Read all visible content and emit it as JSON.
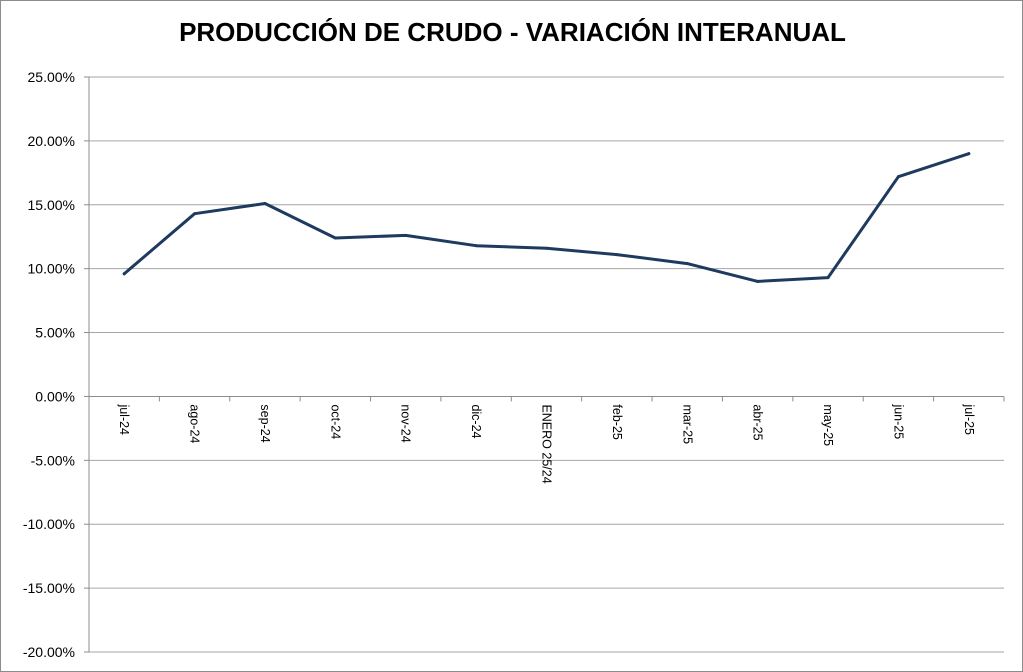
{
  "chart_data": {
    "type": "line",
    "title": "PRODUCCIÓN DE CRUDO - VARIACIÓN INTERANUAL",
    "xlabel": "",
    "ylabel": "",
    "categories": [
      "jul-24",
      "ago-24",
      "sep-24",
      "oct-24",
      "nov-24",
      "dic-24",
      "ENERO 25/24",
      "feb-25",
      "mar-25",
      "abr-25",
      "may-25",
      "jun-25",
      "jul-25"
    ],
    "series": [
      {
        "values": [
          9.6,
          14.3,
          15.1,
          12.4,
          12.6,
          11.8,
          11.6,
          11.1,
          10.4,
          9.0,
          9.3,
          17.2,
          19.0
        ]
      }
    ],
    "ylim": [
      -20,
      25
    ],
    "yticks": [
      25,
      20,
      15,
      10,
      5,
      0,
      -5,
      -10,
      -15,
      -20
    ],
    "ytick_labels": [
      "25.00%",
      "20.00%",
      "15.00%",
      "10.00%",
      "5.00%",
      "0.00%",
      "-5.00%",
      "-10.00%",
      "-15.00%",
      "-20.00%"
    ],
    "grid": true,
    "legend": "none",
    "colors": {
      "line": "#1f3a5f",
      "grid": "#a6a6a6",
      "axis": "#8c8c8c"
    }
  }
}
